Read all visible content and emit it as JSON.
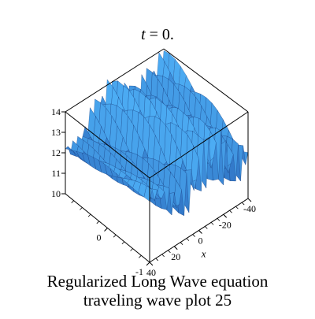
{
  "chart_data": {
    "type": "surface3d",
    "title_var": "t",
    "title_rest": " = 0.",
    "caption": [
      "Regularized Long Wave equation",
      "traveling wave plot 25"
    ],
    "z_axis": {
      "ticks": [
        10,
        11,
        12,
        13,
        14
      ],
      "range": [
        10,
        14
      ]
    },
    "y_axis": {
      "ticks": [
        -1,
        0
      ],
      "range": [
        -1,
        1
      ]
    },
    "x_axis": {
      "label": "x",
      "ticks": [
        -40,
        -20,
        0,
        20,
        40
      ],
      "range": [
        -40,
        40
      ]
    },
    "surface": {
      "color": "#2d7fe0",
      "rows": 15,
      "cols": 40,
      "boxed": true
    }
  }
}
